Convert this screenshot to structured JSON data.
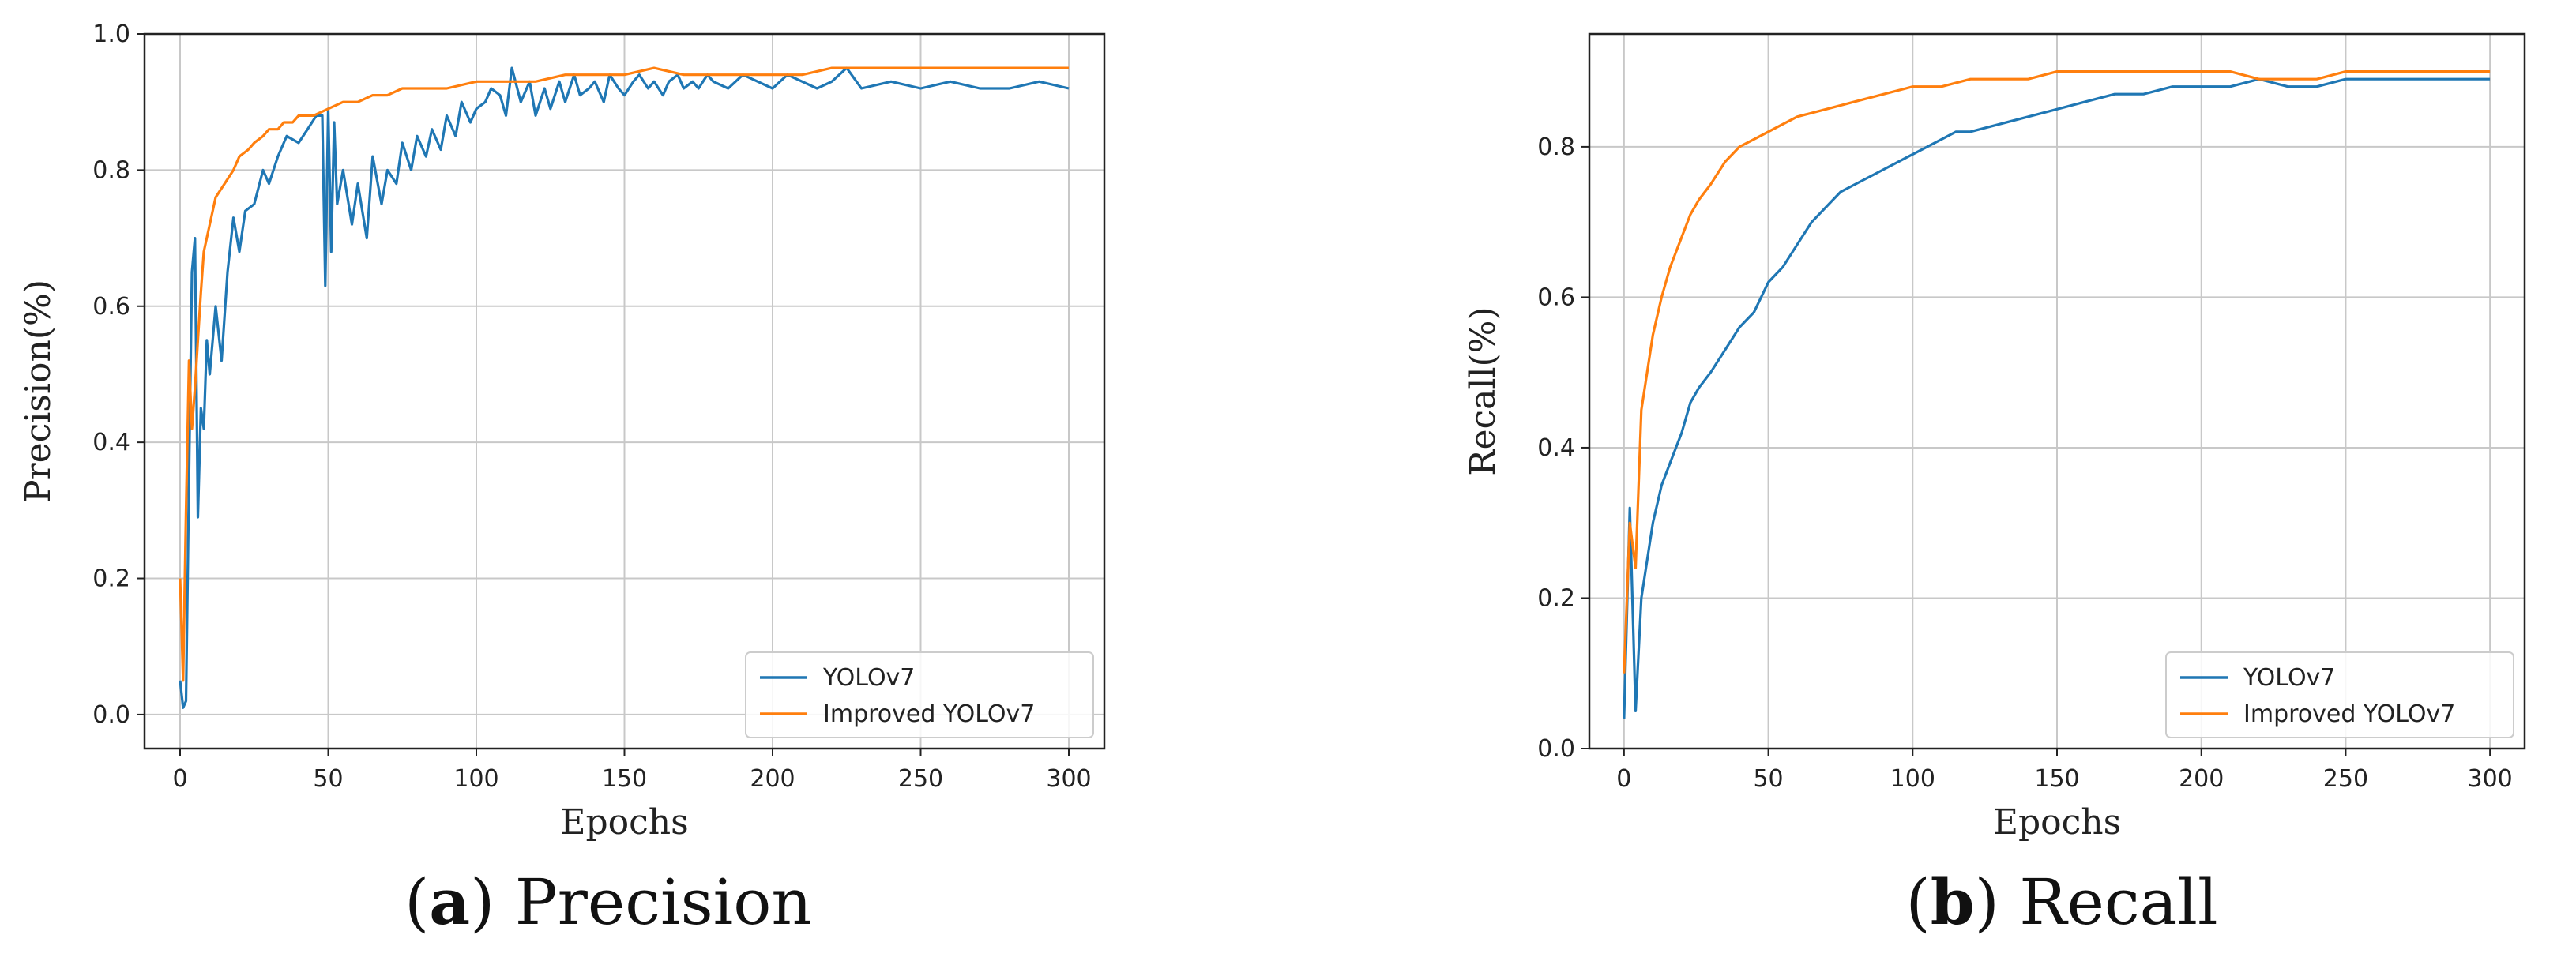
{
  "chart_data": [
    {
      "id": "precision",
      "type": "line",
      "xlabel": "Epochs",
      "ylabel": "Precision(%)",
      "xlim": [
        -12,
        312
      ],
      "ylim": [
        -0.05,
        1.0
      ],
      "xticks": [
        0,
        50,
        100,
        150,
        200,
        250,
        300
      ],
      "yticks": [
        0.0,
        0.2,
        0.4,
        0.6,
        0.8,
        1.0
      ],
      "ytick_labels": [
        "0.0",
        "0.2",
        "0.4",
        "0.6",
        "0.8",
        "1.0"
      ],
      "grid": true,
      "legend_position": "lower-right",
      "caption_letter": "a",
      "caption_text": " Precision",
      "series": [
        {
          "name": "YOLOv7",
          "color": "#1f77b4",
          "x": [
            0,
            1,
            2,
            3,
            4,
            5,
            6,
            7,
            8,
            9,
            10,
            12,
            14,
            16,
            18,
            20,
            22,
            25,
            28,
            30,
            33,
            36,
            40,
            43,
            46,
            48,
            49,
            50,
            51,
            52,
            53,
            55,
            58,
            60,
            63,
            65,
            68,
            70,
            73,
            75,
            78,
            80,
            83,
            85,
            88,
            90,
            93,
            95,
            98,
            100,
            103,
            105,
            108,
            110,
            112,
            115,
            118,
            120,
            123,
            125,
            128,
            130,
            133,
            135,
            138,
            140,
            143,
            145,
            148,
            150,
            153,
            155,
            158,
            160,
            163,
            165,
            168,
            170,
            173,
            175,
            178,
            180,
            185,
            190,
            195,
            200,
            205,
            210,
            215,
            220,
            225,
            230,
            240,
            250,
            260,
            270,
            280,
            290,
            300
          ],
          "y": [
            0.05,
            0.01,
            0.02,
            0.35,
            0.65,
            0.7,
            0.29,
            0.45,
            0.42,
            0.55,
            0.5,
            0.6,
            0.52,
            0.65,
            0.73,
            0.68,
            0.74,
            0.75,
            0.8,
            0.78,
            0.82,
            0.85,
            0.84,
            0.86,
            0.88,
            0.88,
            0.63,
            0.89,
            0.68,
            0.87,
            0.75,
            0.8,
            0.72,
            0.78,
            0.7,
            0.82,
            0.75,
            0.8,
            0.78,
            0.84,
            0.8,
            0.85,
            0.82,
            0.86,
            0.83,
            0.88,
            0.85,
            0.9,
            0.87,
            0.89,
            0.9,
            0.92,
            0.91,
            0.88,
            0.95,
            0.9,
            0.93,
            0.88,
            0.92,
            0.89,
            0.93,
            0.9,
            0.94,
            0.91,
            0.92,
            0.93,
            0.9,
            0.94,
            0.92,
            0.91,
            0.93,
            0.94,
            0.92,
            0.93,
            0.91,
            0.93,
            0.94,
            0.92,
            0.93,
            0.92,
            0.94,
            0.93,
            0.92,
            0.94,
            0.93,
            0.92,
            0.94,
            0.93,
            0.92,
            0.93,
            0.95,
            0.92,
            0.93,
            0.92,
            0.93,
            0.92,
            0.92,
            0.93,
            0.92
          ]
        },
        {
          "name": "Improved YOLOv7",
          "color": "#ff7f0e",
          "x": [
            0,
            1,
            2,
            3,
            4,
            5,
            6,
            7,
            8,
            10,
            12,
            15,
            18,
            20,
            23,
            25,
            28,
            30,
            33,
            35,
            38,
            40,
            45,
            50,
            55,
            60,
            65,
            70,
            75,
            80,
            90,
            100,
            110,
            120,
            130,
            140,
            150,
            160,
            170,
            180,
            190,
            200,
            210,
            220,
            230,
            240,
            250,
            260,
            270,
            280,
            290,
            300
          ],
          "y": [
            0.2,
            0.05,
            0.3,
            0.52,
            0.42,
            0.48,
            0.55,
            0.62,
            0.68,
            0.72,
            0.76,
            0.78,
            0.8,
            0.82,
            0.83,
            0.84,
            0.85,
            0.86,
            0.86,
            0.87,
            0.87,
            0.88,
            0.88,
            0.89,
            0.9,
            0.9,
            0.91,
            0.91,
            0.92,
            0.92,
            0.92,
            0.93,
            0.93,
            0.93,
            0.94,
            0.94,
            0.94,
            0.95,
            0.94,
            0.94,
            0.94,
            0.94,
            0.94,
            0.95,
            0.95,
            0.95,
            0.95,
            0.95,
            0.95,
            0.95,
            0.95,
            0.95
          ]
        }
      ]
    },
    {
      "id": "recall",
      "type": "line",
      "xlabel": "Epochs",
      "ylabel": "Recall(%)",
      "xlim": [
        -12,
        312
      ],
      "ylim": [
        0.0,
        0.95
      ],
      "xticks": [
        0,
        50,
        100,
        150,
        200,
        250,
        300
      ],
      "yticks": [
        0.0,
        0.2,
        0.4,
        0.6,
        0.8
      ],
      "ytick_labels": [
        "0.0",
        "0.2",
        "0.4",
        "0.6",
        "0.8"
      ],
      "grid": true,
      "legend_position": "lower-right",
      "caption_letter": "b",
      "caption_text": " Recall",
      "series": [
        {
          "name": "YOLOv7",
          "color": "#1f77b4",
          "x": [
            0,
            2,
            4,
            6,
            8,
            10,
            13,
            16,
            20,
            23,
            26,
            30,
            35,
            40,
            45,
            50,
            55,
            60,
            65,
            70,
            75,
            80,
            85,
            90,
            95,
            100,
            105,
            110,
            115,
            120,
            130,
            140,
            150,
            160,
            170,
            180,
            190,
            200,
            210,
            220,
            230,
            240,
            250,
            260,
            270,
            280,
            290,
            300
          ],
          "y": [
            0.04,
            0.32,
            0.05,
            0.2,
            0.25,
            0.3,
            0.35,
            0.38,
            0.42,
            0.46,
            0.48,
            0.5,
            0.53,
            0.56,
            0.58,
            0.62,
            0.64,
            0.67,
            0.7,
            0.72,
            0.74,
            0.75,
            0.76,
            0.77,
            0.78,
            0.79,
            0.8,
            0.81,
            0.82,
            0.82,
            0.83,
            0.84,
            0.85,
            0.86,
            0.87,
            0.87,
            0.88,
            0.88,
            0.88,
            0.89,
            0.88,
            0.88,
            0.89,
            0.89,
            0.89,
            0.89,
            0.89,
            0.89
          ]
        },
        {
          "name": "Improved YOLOv7",
          "color": "#ff7f0e",
          "x": [
            0,
            2,
            4,
            6,
            8,
            10,
            13,
            16,
            20,
            23,
            26,
            30,
            35,
            40,
            45,
            50,
            55,
            60,
            70,
            80,
            90,
            100,
            110,
            120,
            130,
            140,
            150,
            160,
            170,
            180,
            190,
            200,
            210,
            220,
            230,
            240,
            250,
            260,
            270,
            280,
            290,
            300
          ],
          "y": [
            0.1,
            0.3,
            0.24,
            0.45,
            0.5,
            0.55,
            0.6,
            0.64,
            0.68,
            0.71,
            0.73,
            0.75,
            0.78,
            0.8,
            0.81,
            0.82,
            0.83,
            0.84,
            0.85,
            0.86,
            0.87,
            0.88,
            0.88,
            0.89,
            0.89,
            0.89,
            0.9,
            0.9,
            0.9,
            0.9,
            0.9,
            0.9,
            0.9,
            0.89,
            0.89,
            0.89,
            0.9,
            0.9,
            0.9,
            0.9,
            0.9,
            0.9
          ]
        }
      ]
    }
  ]
}
